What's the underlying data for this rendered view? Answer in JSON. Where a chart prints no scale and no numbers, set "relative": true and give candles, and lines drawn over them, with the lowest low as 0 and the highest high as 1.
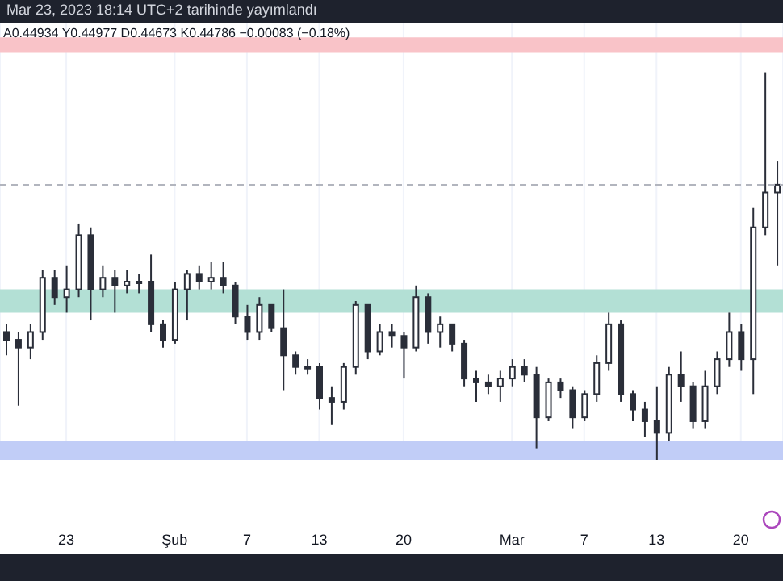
{
  "chart_data": {
    "type": "candlestick",
    "relative": true,
    "annotations": [
      "Mar 23, 2023 18:14 UTC+2 tarihinde yayımlandı",
      "A0.44934 Y0.44977 D0.44673 K0.44786 −0.00083 (−0.18%)"
    ],
    "color": "#2a2e39",
    "x": [
      "2023-01-18",
      "2023-01-19",
      "2023-01-20",
      "2023-01-21",
      "2023-01-22",
      "2023-01-23",
      "2023-01-24",
      "2023-01-25",
      "2023-01-26",
      "2023-01-27",
      "2023-01-28",
      "2023-01-29",
      "2023-01-30",
      "2023-01-31",
      "2023-02-01",
      "2023-02-02",
      "2023-02-03",
      "2023-02-04",
      "2023-02-05",
      "2023-02-06",
      "2023-02-07",
      "2023-02-08",
      "2023-02-09",
      "2023-02-10",
      "2023-02-11",
      "2023-02-12",
      "2023-02-13",
      "2023-02-14",
      "2023-02-15",
      "2023-02-16",
      "2023-02-17",
      "2023-02-18",
      "2023-02-19",
      "2023-02-20",
      "2023-02-21",
      "2023-02-22",
      "2023-02-23",
      "2023-02-24",
      "2023-02-25",
      "2023-02-26",
      "2023-02-27",
      "2023-02-28",
      "2023-03-01",
      "2023-03-02",
      "2023-03-03",
      "2023-03-04",
      "2023-03-05",
      "2023-03-06",
      "2023-03-07",
      "2023-03-08",
      "2023-03-09",
      "2023-03-10",
      "2023-03-11",
      "2023-03-12",
      "2023-03-13",
      "2023-03-14",
      "2023-03-15",
      "2023-03-16",
      "2023-03-17",
      "2023-03-18",
      "2023-03-19",
      "2023-03-20",
      "2023-03-21",
      "2023-03-22",
      "2023-03-23"
    ],
    "ohlc": [
      [
        0.33,
        0.35,
        0.27,
        0.31
      ],
      [
        0.31,
        0.33,
        0.14,
        0.29
      ],
      [
        0.29,
        0.35,
        0.26,
        0.33
      ],
      [
        0.33,
        0.49,
        0.31,
        0.47
      ],
      [
        0.47,
        0.49,
        0.4,
        0.42
      ],
      [
        0.42,
        0.5,
        0.38,
        0.44
      ],
      [
        0.44,
        0.61,
        0.42,
        0.58
      ],
      [
        0.58,
        0.6,
        0.36,
        0.44
      ],
      [
        0.44,
        0.5,
        0.42,
        0.47
      ],
      [
        0.47,
        0.49,
        0.38,
        0.45
      ],
      [
        0.45,
        0.49,
        0.43,
        0.46
      ],
      [
        0.46,
        0.48,
        0.43,
        0.46
      ],
      [
        0.46,
        0.53,
        0.33,
        0.35
      ],
      [
        0.35,
        0.36,
        0.29,
        0.31
      ],
      [
        0.31,
        0.46,
        0.3,
        0.44
      ],
      [
        0.44,
        0.49,
        0.36,
        0.48
      ],
      [
        0.48,
        0.5,
        0.44,
        0.46
      ],
      [
        0.46,
        0.51,
        0.44,
        0.47
      ],
      [
        0.47,
        0.51,
        0.43,
        0.45
      ],
      [
        0.45,
        0.46,
        0.35,
        0.37
      ],
      [
        0.37,
        0.4,
        0.31,
        0.33
      ],
      [
        0.33,
        0.42,
        0.31,
        0.4
      ],
      [
        0.4,
        0.4,
        0.33,
        0.34
      ],
      [
        0.34,
        0.44,
        0.18,
        0.27
      ],
      [
        0.27,
        0.28,
        0.22,
        0.24
      ],
      [
        0.24,
        0.26,
        0.22,
        0.24
      ],
      [
        0.24,
        0.25,
        0.13,
        0.16
      ],
      [
        0.16,
        0.19,
        0.09,
        0.15
      ],
      [
        0.15,
        0.25,
        0.13,
        0.24
      ],
      [
        0.24,
        0.41,
        0.22,
        0.4
      ],
      [
        0.4,
        0.4,
        0.26,
        0.28
      ],
      [
        0.28,
        0.35,
        0.27,
        0.33
      ],
      [
        0.33,
        0.35,
        0.29,
        0.32
      ],
      [
        0.32,
        0.33,
        0.21,
        0.29
      ],
      [
        0.29,
        0.45,
        0.28,
        0.42
      ],
      [
        0.42,
        0.43,
        0.3,
        0.33
      ],
      [
        0.33,
        0.37,
        0.29,
        0.35
      ],
      [
        0.35,
        0.35,
        0.28,
        0.3
      ],
      [
        0.3,
        0.31,
        0.19,
        0.21
      ],
      [
        0.21,
        0.23,
        0.15,
        0.2
      ],
      [
        0.2,
        0.22,
        0.17,
        0.19
      ],
      [
        0.19,
        0.23,
        0.15,
        0.21
      ],
      [
        0.21,
        0.26,
        0.19,
        0.24
      ],
      [
        0.24,
        0.26,
        0.2,
        0.22
      ],
      [
        0.22,
        0.24,
        0.03,
        0.11
      ],
      [
        0.11,
        0.21,
        0.1,
        0.2
      ],
      [
        0.2,
        0.21,
        0.16,
        0.18
      ],
      [
        0.18,
        0.19,
        0.08,
        0.11
      ],
      [
        0.11,
        0.18,
        0.1,
        0.17
      ],
      [
        0.17,
        0.27,
        0.15,
        0.25
      ],
      [
        0.25,
        0.38,
        0.23,
        0.35
      ],
      [
        0.35,
        0.36,
        0.15,
        0.17
      ],
      [
        0.17,
        0.18,
        0.1,
        0.13
      ],
      [
        0.13,
        0.15,
        0.06,
        0.1
      ],
      [
        0.1,
        0.19,
        0,
        0.07
      ],
      [
        0.07,
        0.24,
        0.05,
        0.22
      ],
      [
        0.22,
        0.28,
        0.15,
        0.19
      ],
      [
        0.19,
        0.2,
        0.08,
        0.1
      ],
      [
        0.1,
        0.23,
        0.08,
        0.19
      ],
      [
        0.19,
        0.28,
        0.17,
        0.26
      ],
      [
        0.26,
        0.38,
        0.24,
        0.33
      ],
      [
        0.33,
        0.35,
        0.23,
        0.26
      ],
      [
        0.26,
        0.65,
        0.17,
        0.6
      ],
      [
        0.6,
        1,
        0.58,
        0.69
      ],
      [
        0.69,
        0.77,
        0.5,
        0.71
      ]
    ],
    "xlim": [
      "2023-01-17T12:00",
      "2023-03-23T12:00"
    ],
    "xticks": [
      {
        "value": "2023-01-23",
        "label": "23"
      },
      {
        "value": "2023-02-01",
        "label": "Şub"
      },
      {
        "value": "2023-02-07",
        "label": "7"
      },
      {
        "value": "2023-02-13",
        "label": "13"
      },
      {
        "value": "2023-02-20",
        "label": "20"
      },
      {
        "value": "2023-03-01",
        "label": "Mar"
      },
      {
        "value": "2023-03-07",
        "label": "7"
      },
      {
        "value": "2023-03-13",
        "label": "13"
      },
      {
        "value": "2023-03-20",
        "label": "20"
      }
    ],
    "bands": [
      {
        "axis": "y",
        "from": 1.05,
        "to": 1.09,
        "color": "#f9c3c8"
      },
      {
        "axis": "y",
        "from": 0.38,
        "to": 0.44,
        "color": "#b3e0d5"
      },
      {
        "axis": "y",
        "from": 0,
        "to": 0.05,
        "color": "#c1cdf7"
      }
    ],
    "ref_lines": [
      {
        "axis": "y",
        "value": 0.71,
        "color": "#b2b5be",
        "line_style": "dashed"
      }
    ],
    "grid": "x"
  }
}
